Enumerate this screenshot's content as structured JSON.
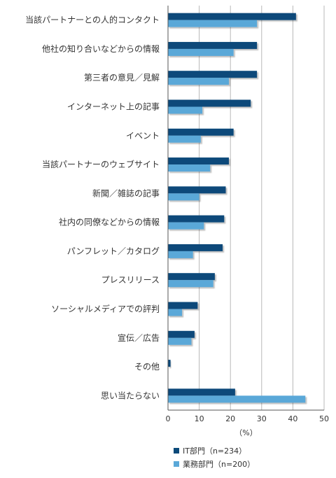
{
  "chart_data": {
    "type": "bar",
    "orientation": "horizontal",
    "categories": [
      "当該パートナーとの人的コンタクト",
      "他社の知り合いなどからの情報",
      "第三者の意見／見解",
      "インターネット上の記事",
      "イベント",
      "当該パートナーのウェブサイト",
      "新聞／雑誌の記事",
      "社内の同僚などからの情報",
      "パンフレット／カタログ",
      "プレスリリース",
      "ソーシャルメディアでの評判",
      "宣伝／広告",
      "その他",
      "思い当たらない"
    ],
    "series": [
      {
        "name": "IT部門（n=234）",
        "color": "#0b4a7a",
        "values": [
          41,
          28.5,
          28.5,
          26.5,
          21,
          19.5,
          18.5,
          18,
          17.5,
          15,
          9.5,
          8.5,
          0.8,
          21.5
        ]
      },
      {
        "name": "業務部門（n=200）",
        "color": "#5aa8d8",
        "values": [
          28.5,
          21,
          19.5,
          11,
          10.5,
          13.5,
          10,
          11.5,
          8,
          14.5,
          4.5,
          7.5,
          0,
          44
        ]
      }
    ],
    "xlim": [
      0,
      50
    ],
    "xticks": [
      0,
      10,
      20,
      30,
      40,
      50
    ],
    "xlabel": "（%）",
    "grid": true,
    "legend_position": "bottom"
  }
}
